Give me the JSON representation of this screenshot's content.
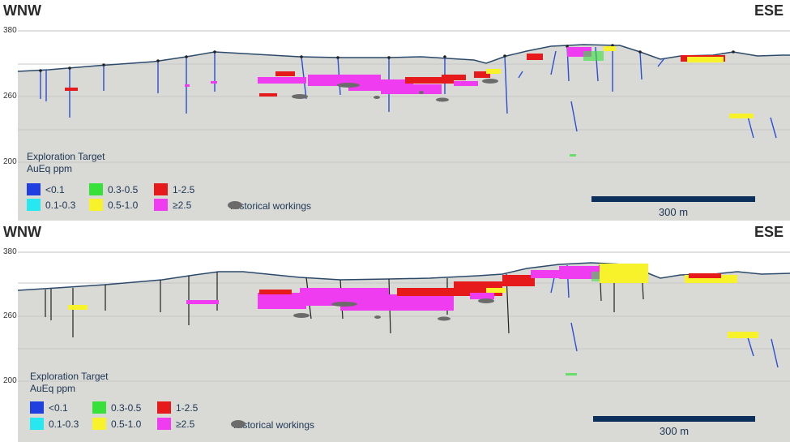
{
  "panels": [
    {
      "left_dir": "WNW",
      "right_dir": "ESE",
      "elev_labels": [
        "380",
        "260",
        "200"
      ],
      "legend": {
        "title_line1": "Exploration Target",
        "title_line2": "AuEq ppm",
        "items": [
          {
            "label": "<0.1",
            "color": "#1f3fe0"
          },
          {
            "label": "0.1-0.3",
            "color": "#27e8f0"
          },
          {
            "label": "0.3-0.5",
            "color": "#38e03a"
          },
          {
            "label": "0.5-1.0",
            "color": "#f7f22a"
          },
          {
            "label": "1-2.5",
            "color": "#e61a1a"
          },
          {
            "label": "≥2.5",
            "color": "#f03cf0"
          }
        ],
        "historical_label": "Historical workings"
      },
      "scale_label": "300 m"
    },
    {
      "left_dir": "WNW",
      "right_dir": "ESE",
      "elev_labels": [
        "380",
        "260",
        "200"
      ],
      "legend": {
        "title_line1": "Exploration Target",
        "title_line2": "AuEq ppm",
        "items": [
          {
            "label": "<0.1",
            "color": "#1f3fe0"
          },
          {
            "label": "0.1-0.3",
            "color": "#27e8f0"
          },
          {
            "label": "0.3-0.5",
            "color": "#38e03a"
          },
          {
            "label": "0.5-1.0",
            "color": "#f7f22a"
          },
          {
            "label": "1-2.5",
            "color": "#e61a1a"
          },
          {
            "label": "≥2.5",
            "color": "#f03cf0"
          }
        ],
        "historical_label": "Historical workings"
      },
      "scale_label": "300 m"
    }
  ],
  "colors": {
    "ground": "#d9d9d6",
    "terrain_line": "#2b4a6b",
    "grid": "#bfbfbf",
    "drill_blue": "#2a4fd0",
    "drill_black": "#222222",
    "historical": "#6b6b6b",
    "scale_bar": "#0d2f5c"
  }
}
